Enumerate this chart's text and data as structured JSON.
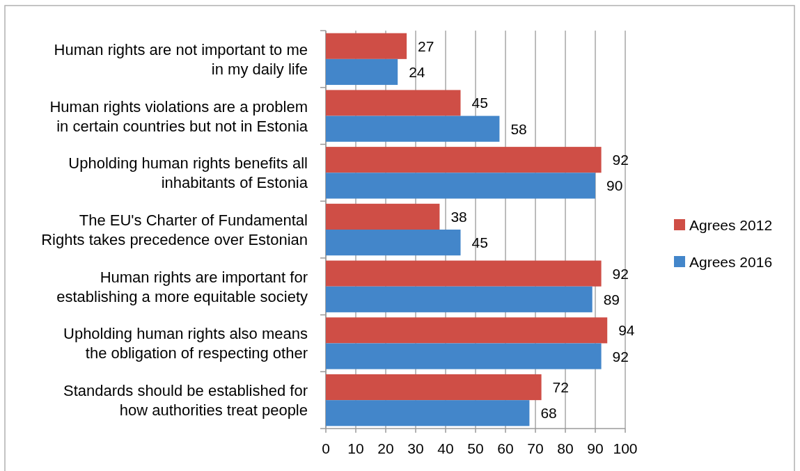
{
  "chart_data": {
    "type": "bar",
    "orientation": "horizontal",
    "categories": [
      "Human rights are not important to me\nin my daily life",
      "Human rights violations are a problem\nin certain countries but not in Estonia",
      "Upholding human rights benefits all\ninhabitants of Estonia",
      "The EU's Charter of Fundamental\nRights takes precedence over Estonian",
      "Human rights are important for\nestablishing a more equitable society",
      "Upholding human rights also means\nthe obligation of respecting other",
      "Standards should be established for\nhow authorities treat people"
    ],
    "series": [
      {
        "name": "Agrees 2012",
        "color": "#cf4e46",
        "values": [
          27,
          45,
          92,
          38,
          92,
          94,
          72
        ]
      },
      {
        "name": "Agrees 2016",
        "color": "#4386ca",
        "values": [
          24,
          58,
          90,
          45,
          89,
          92,
          68
        ]
      }
    ],
    "xlim": [
      0,
      100
    ],
    "xticks": [
      0,
      10,
      20,
      30,
      40,
      50,
      60,
      70,
      80,
      90,
      100
    ],
    "grid": "x",
    "legend": "right",
    "data_labels": true
  }
}
